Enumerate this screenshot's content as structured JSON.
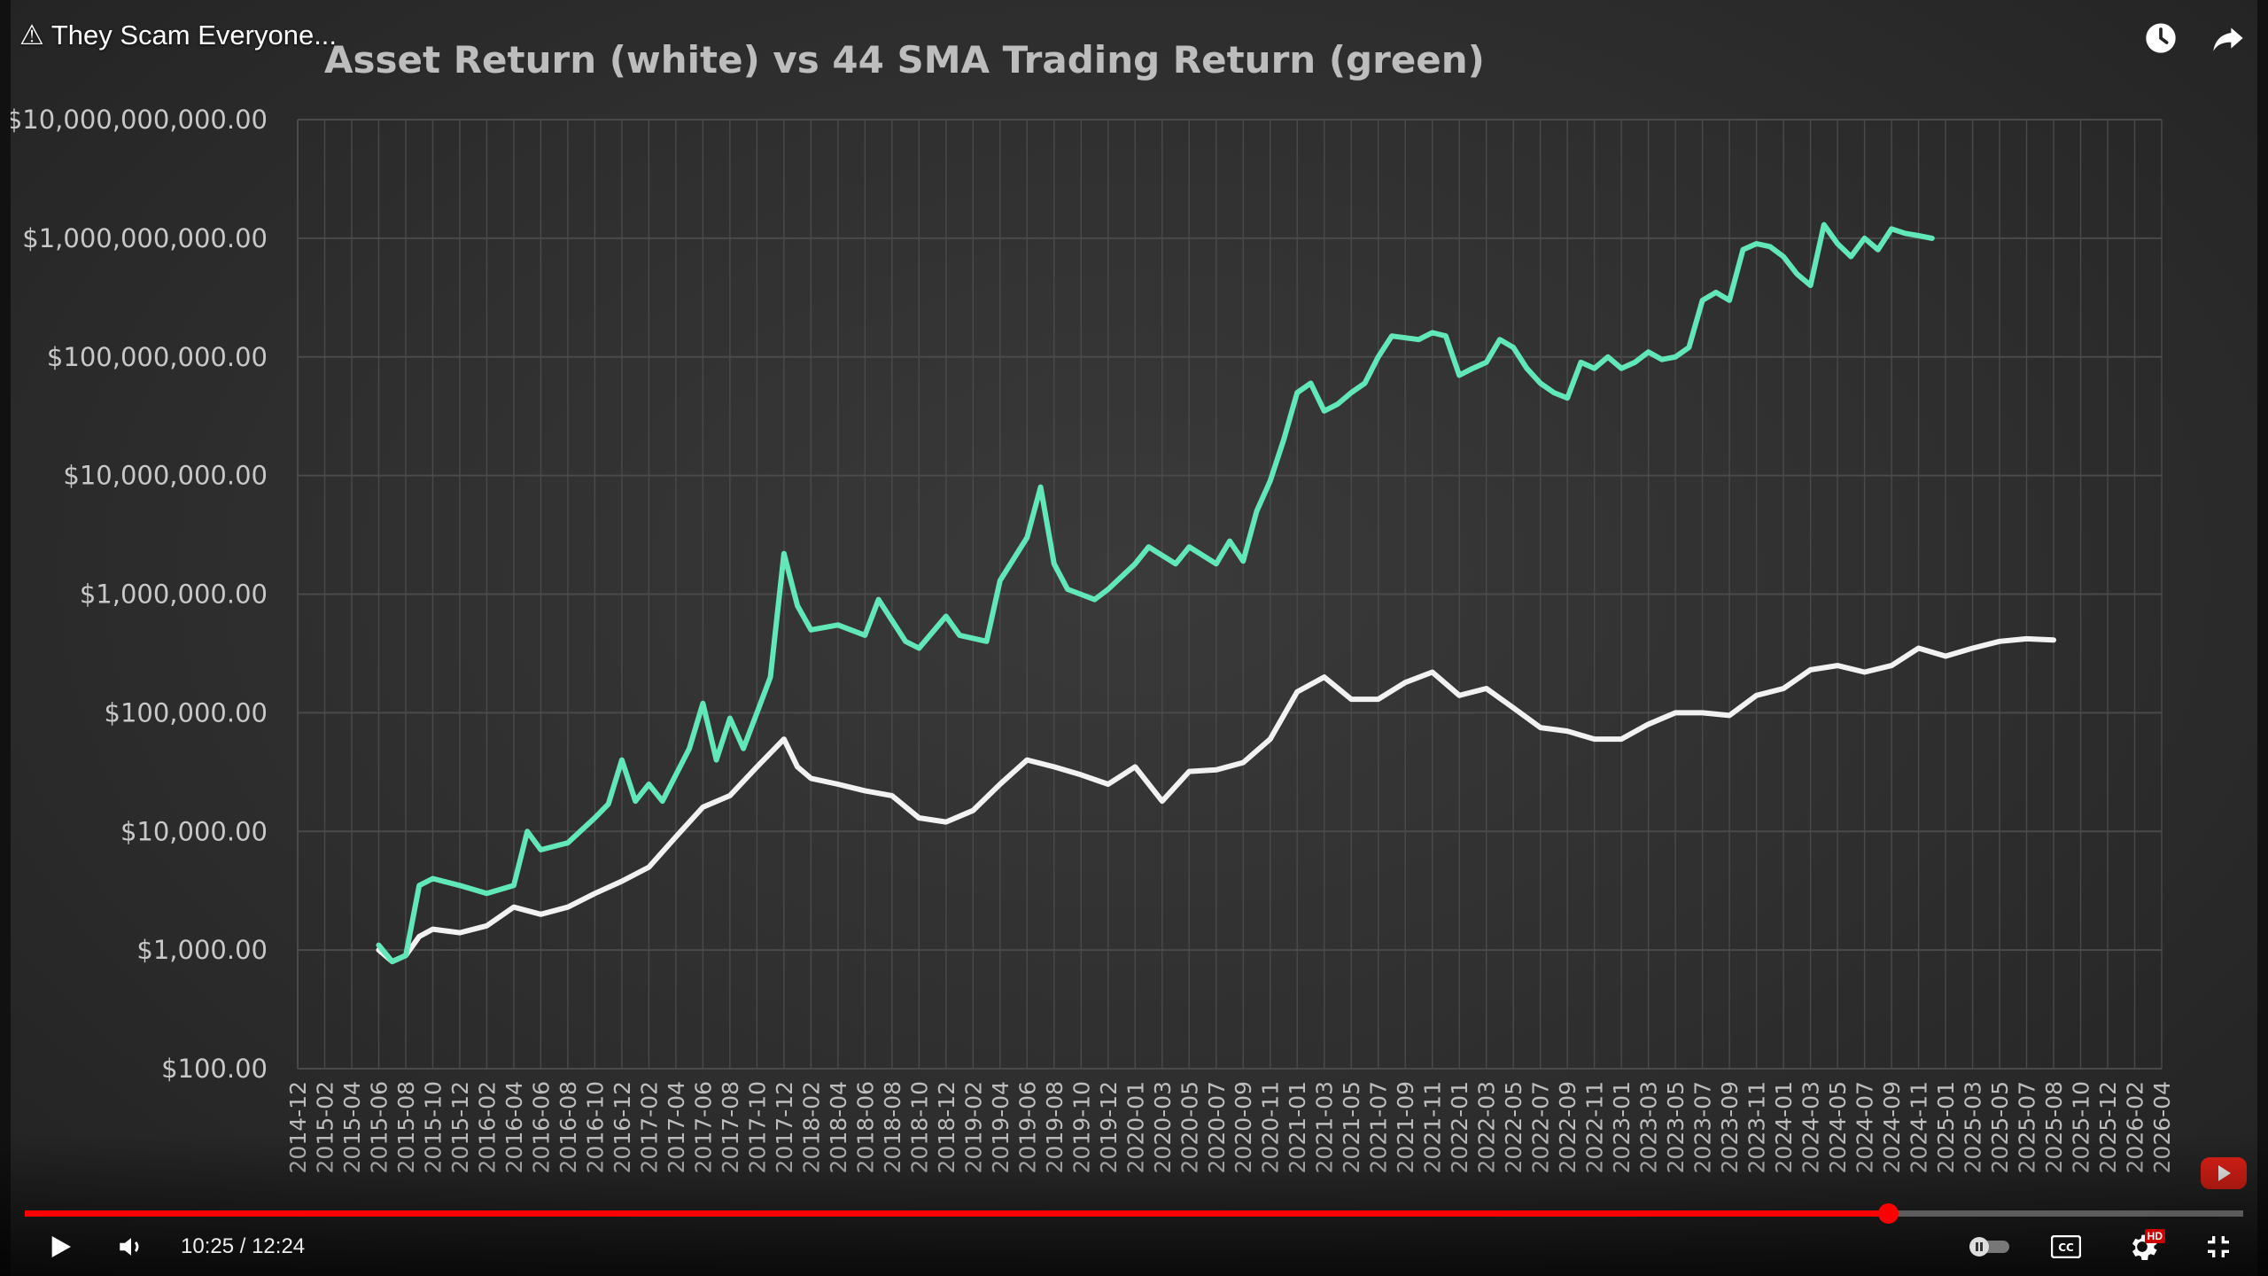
{
  "video": {
    "title": "⚠ They Scam Everyone...",
    "time_current": "10:25",
    "time_separator": " / ",
    "time_total": "12:24",
    "progress_fraction": 0.8397
  },
  "controls": {
    "top_right_icons": [
      "watch-later-icon",
      "share-icon"
    ],
    "left_icons": [
      "play-icon",
      "volume-icon"
    ],
    "right_icons": [
      "autoplay-toggle",
      "cc-icon",
      "settings-hd-icon",
      "exit-fullscreen-icon"
    ],
    "hd_badge": "HD",
    "cc_label": "CC"
  },
  "colors": {
    "asset_line": "#f2f2f2",
    "strategy_line": "#62e8b8",
    "progress": "#ff0000",
    "background": "#303030",
    "grid": "#4a4a4a"
  },
  "chart_data": {
    "type": "line",
    "title": "Asset Return (white) vs 44 SMA Trading Return (green)",
    "y_scale": "log",
    "ylim": [
      100,
      10000000000
    ],
    "y_ticks": [
      {
        "value": 10000000000,
        "label": "$10,000,000,000.00"
      },
      {
        "value": 1000000000,
        "label": "$1,000,000,000.00"
      },
      {
        "value": 100000000,
        "label": "$100,000,000.00"
      },
      {
        "value": 10000000,
        "label": "$10,000,000.00"
      },
      {
        "value": 1000000,
        "label": "$1,000,000.00"
      },
      {
        "value": 100000,
        "label": "$100,000.00"
      },
      {
        "value": 10000,
        "label": "$10,000.00"
      },
      {
        "value": 1000,
        "label": "$1,000.00"
      },
      {
        "value": 100,
        "label": "$100.00"
      }
    ],
    "x_ticks": [
      "2014-12",
      "2015-02",
      "2015-04",
      "2015-06",
      "2015-08",
      "2015-10",
      "2015-12",
      "2016-02",
      "2016-04",
      "2016-06",
      "2016-08",
      "2016-10",
      "2016-12",
      "2017-02",
      "2017-04",
      "2017-06",
      "2017-08",
      "2017-10",
      "2017-12",
      "2018-02",
      "2018-04",
      "2018-06",
      "2018-08",
      "2018-10",
      "2018-12",
      "2019-02",
      "2019-04",
      "2019-06",
      "2019-08",
      "2019-10",
      "2019-12",
      "2020-01",
      "2020-03",
      "2020-05",
      "2020-07",
      "2020-09",
      "2020-11",
      "2021-01",
      "2021-03",
      "2021-05",
      "2021-07",
      "2021-09",
      "2021-11",
      "2022-01",
      "2022-03",
      "2022-05",
      "2022-07",
      "2022-09",
      "2022-11",
      "2023-01",
      "2023-03",
      "2023-05",
      "2023-07",
      "2023-09",
      "2023-11",
      "2024-01",
      "2024-03",
      "2024-05",
      "2024-07",
      "2024-09",
      "2024-11",
      "2025-01",
      "2025-03",
      "2025-05",
      "2025-07",
      "2025-08",
      "2025-10",
      "2025-12",
      "2026-02",
      "2026-04"
    ],
    "grid": true,
    "legend": "none",
    "series": [
      {
        "color": "#62e8b8",
        "points": [
          [
            "2015-06",
            1100
          ],
          [
            "2015-07",
            800
          ],
          [
            "2015-08",
            900
          ],
          [
            "2015-09",
            3500
          ],
          [
            "2015-10",
            4000
          ],
          [
            "2015-12",
            3500
          ],
          [
            "2016-02",
            3000
          ],
          [
            "2016-04",
            3500
          ],
          [
            "2016-05",
            10000
          ],
          [
            "2016-06",
            7000
          ],
          [
            "2016-08",
            8000
          ],
          [
            "2016-10",
            13000
          ],
          [
            "2016-11",
            17000
          ],
          [
            "2016-12",
            40000
          ],
          [
            "2017-01",
            18000
          ],
          [
            "2017-02",
            25000
          ],
          [
            "2017-03",
            18000
          ],
          [
            "2017-05",
            50000
          ],
          [
            "2017-06",
            120000
          ],
          [
            "2017-07",
            40000
          ],
          [
            "2017-08",
            90000
          ],
          [
            "2017-09",
            50000
          ],
          [
            "2017-10",
            100000
          ],
          [
            "2017-11",
            200000
          ],
          [
            "2017-12",
            2200000
          ],
          [
            "2018-01",
            800000
          ],
          [
            "2018-02",
            500000
          ],
          [
            "2018-04",
            550000
          ],
          [
            "2018-06",
            450000
          ],
          [
            "2018-07",
            900000
          ],
          [
            "2018-09",
            400000
          ],
          [
            "2018-10",
            350000
          ],
          [
            "2018-12",
            650000
          ],
          [
            "2019-01",
            450000
          ],
          [
            "2019-03",
            400000
          ],
          [
            "2019-04",
            1300000
          ],
          [
            "2019-06",
            3000000
          ],
          [
            "2019-07",
            8000000
          ],
          [
            "2019-08",
            1800000
          ],
          [
            "2019-09",
            1100000
          ],
          [
            "2019-11",
            900000
          ],
          [
            "2019-12",
            1100000
          ],
          [
            "2020-01",
            1800000
          ],
          [
            "2020-02",
            2500000
          ],
          [
            "2020-04",
            1800000
          ],
          [
            "2020-05",
            2500000
          ],
          [
            "2020-07",
            1800000
          ],
          [
            "2020-08",
            2800000
          ],
          [
            "2020-09",
            1900000
          ],
          [
            "2020-10",
            5000000
          ],
          [
            "2020-11",
            9000000
          ],
          [
            "2020-12",
            20000000
          ],
          [
            "2021-01",
            50000000
          ],
          [
            "2021-02",
            60000000
          ],
          [
            "2021-03",
            35000000
          ],
          [
            "2021-04",
            40000000
          ],
          [
            "2021-05",
            50000000
          ],
          [
            "2021-06",
            60000000
          ],
          [
            "2021-07",
            100000000
          ],
          [
            "2021-08",
            150000000
          ],
          [
            "2021-10",
            140000000
          ],
          [
            "2021-11",
            160000000
          ],
          [
            "2021-12",
            150000000
          ],
          [
            "2022-01",
            70000000
          ],
          [
            "2022-02",
            80000000
          ],
          [
            "2022-03",
            90000000
          ],
          [
            "2022-04",
            140000000
          ],
          [
            "2022-05",
            120000000
          ],
          [
            "2022-06",
            80000000
          ],
          [
            "2022-07",
            60000000
          ],
          [
            "2022-08",
            50000000
          ],
          [
            "2022-09",
            45000000
          ],
          [
            "2022-10",
            90000000
          ],
          [
            "2022-11",
            80000000
          ],
          [
            "2022-12",
            100000000
          ],
          [
            "2023-01",
            80000000
          ],
          [
            "2023-02",
            90000000
          ],
          [
            "2023-03",
            110000000
          ],
          [
            "2023-04",
            95000000
          ],
          [
            "2023-05",
            100000000
          ],
          [
            "2023-06",
            120000000
          ],
          [
            "2023-07",
            300000000
          ],
          [
            "2023-08",
            350000000
          ],
          [
            "2023-09",
            300000000
          ],
          [
            "2023-10",
            800000000
          ],
          [
            "2023-11",
            900000000
          ],
          [
            "2023-12",
            850000000
          ],
          [
            "2024-01",
            700000000
          ],
          [
            "2024-02",
            500000000
          ],
          [
            "2024-03",
            400000000
          ],
          [
            "2024-04",
            1300000000
          ],
          [
            "2024-05",
            900000000
          ],
          [
            "2024-06",
            700000000
          ],
          [
            "2024-07",
            1000000000
          ],
          [
            "2024-08",
            800000000
          ],
          [
            "2024-09",
            1200000000
          ],
          [
            "2024-10",
            1100000000
          ],
          [
            "2024-11",
            1050000000
          ],
          [
            "2024-12",
            1000000000
          ]
        ]
      },
      {
        "color": "#f2f2f2",
        "points": [
          [
            "2015-06",
            1000
          ],
          [
            "2015-07",
            800
          ],
          [
            "2015-08",
            900
          ],
          [
            "2015-09",
            1300
          ],
          [
            "2015-10",
            1500
          ],
          [
            "2015-12",
            1400
          ],
          [
            "2016-02",
            1600
          ],
          [
            "2016-04",
            2300
          ],
          [
            "2016-06",
            2000
          ],
          [
            "2016-08",
            2300
          ],
          [
            "2016-10",
            3000
          ],
          [
            "2016-12",
            3800
          ],
          [
            "2017-02",
            5000
          ],
          [
            "2017-04",
            9000
          ],
          [
            "2017-06",
            16000
          ],
          [
            "2017-08",
            20000
          ],
          [
            "2017-10",
            35000
          ],
          [
            "2017-12",
            60000
          ],
          [
            "2018-01",
            35000
          ],
          [
            "2018-02",
            28000
          ],
          [
            "2018-04",
            25000
          ],
          [
            "2018-06",
            22000
          ],
          [
            "2018-08",
            20000
          ],
          [
            "2018-10",
            13000
          ],
          [
            "2018-12",
            12000
          ],
          [
            "2019-02",
            15000
          ],
          [
            "2019-04",
            25000
          ],
          [
            "2019-06",
            40000
          ],
          [
            "2019-08",
            35000
          ],
          [
            "2019-10",
            30000
          ],
          [
            "2019-12",
            25000
          ],
          [
            "2020-01",
            35000
          ],
          [
            "2020-03",
            18000
          ],
          [
            "2020-05",
            32000
          ],
          [
            "2020-07",
            33000
          ],
          [
            "2020-09",
            38000
          ],
          [
            "2020-11",
            60000
          ],
          [
            "2021-01",
            150000
          ],
          [
            "2021-03",
            200000
          ],
          [
            "2021-05",
            130000
          ],
          [
            "2021-07",
            130000
          ],
          [
            "2021-09",
            180000
          ],
          [
            "2021-11",
            220000
          ],
          [
            "2022-01",
            140000
          ],
          [
            "2022-03",
            160000
          ],
          [
            "2022-05",
            110000
          ],
          [
            "2022-07",
            75000
          ],
          [
            "2022-09",
            70000
          ],
          [
            "2022-11",
            60000
          ],
          [
            "2023-01",
            60000
          ],
          [
            "2023-03",
            80000
          ],
          [
            "2023-05",
            100000
          ],
          [
            "2023-07",
            100000
          ],
          [
            "2023-09",
            95000
          ],
          [
            "2023-11",
            140000
          ],
          [
            "2024-01",
            160000
          ],
          [
            "2024-03",
            230000
          ],
          [
            "2024-05",
            250000
          ],
          [
            "2024-07",
            220000
          ],
          [
            "2024-09",
            250000
          ],
          [
            "2024-11",
            350000
          ],
          [
            "2025-01",
            300000
          ],
          [
            "2025-03",
            350000
          ],
          [
            "2025-05",
            400000
          ],
          [
            "2025-07",
            420000
          ],
          [
            "2025-08",
            410000
          ]
        ]
      }
    ]
  }
}
